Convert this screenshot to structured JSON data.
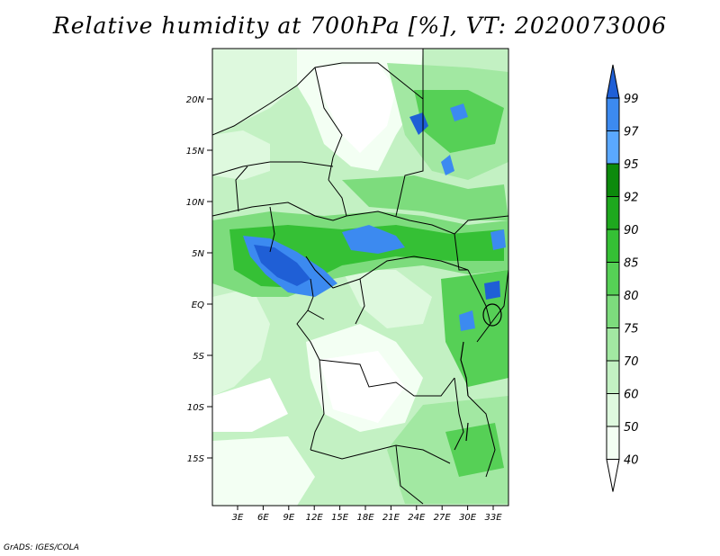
{
  "title": "Relative humidity at 700hPa [%], VT: 2020073006",
  "credit": "GrADS: IGES/COLA",
  "map": {
    "lat_labels": [
      "20N",
      "15N",
      "10N",
      "5N",
      "EQ",
      "5S",
      "10S",
      "15S"
    ],
    "lon_labels": [
      "3E",
      "6E",
      "9E",
      "12E",
      "15E",
      "18E",
      "21E",
      "24E",
      "27E",
      "30E",
      "33E"
    ]
  },
  "colorbar": {
    "levels": [
      "99",
      "97",
      "95",
      "92",
      "90",
      "85",
      "80",
      "75",
      "70",
      "60",
      "50",
      "40"
    ],
    "colors": [
      "#1f5fd6",
      "#3c8af0",
      "#5aa8ff",
      "#0c8a0c",
      "#1ea81e",
      "#35c035",
      "#56d056",
      "#7ddc7d",
      "#a2e8a2",
      "#c3f1c3",
      "#def9de",
      "#f3fff3",
      "#ffffff"
    ],
    "above_color": "#1f5fd6",
    "below_color": "#ffffff"
  }
}
